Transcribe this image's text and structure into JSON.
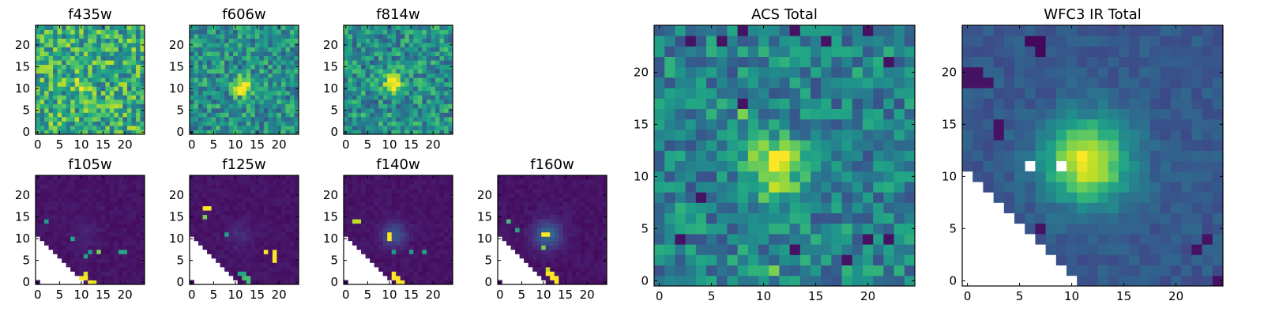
{
  "chart_data": [
    {
      "type": "heatmap",
      "title": "f435w",
      "kind": "opt_noise",
      "xticks": [
        "0",
        "5",
        "10",
        "15",
        "20"
      ],
      "yticks": [
        "0",
        "5",
        "10",
        "15",
        "20"
      ],
      "xlim": [
        0,
        25
      ],
      "ylim": [
        0,
        25
      ],
      "colormap": "viridis",
      "source": {
        "x": 10.5,
        "y": 10.5,
        "sigma": 1.2,
        "amp": 0.45
      }
    },
    {
      "type": "heatmap",
      "title": "f606w",
      "kind": "opt",
      "xticks": [
        "0",
        "5",
        "10",
        "15",
        "20"
      ],
      "yticks": [
        "0",
        "5",
        "10",
        "15",
        "20"
      ],
      "xlim": [
        0,
        25
      ],
      "ylim": [
        0,
        25
      ],
      "colormap": "viridis",
      "source": {
        "x": 11.5,
        "y": 10.5,
        "sigma": 1.4,
        "amp": 0.6
      }
    },
    {
      "type": "heatmap",
      "title": "f814w",
      "kind": "opt",
      "xticks": [
        "0",
        "5",
        "10",
        "15",
        "20"
      ],
      "yticks": [
        "0",
        "5",
        "10",
        "15",
        "20"
      ],
      "xlim": [
        0,
        25
      ],
      "ylim": [
        0,
        25
      ],
      "colormap": "viridis",
      "source": {
        "x": 11,
        "y": 11,
        "sigma": 1.4,
        "amp": 0.6
      }
    },
    {
      "type": "heatmap",
      "title": "f105w",
      "kind": "ir_band",
      "xticks": [
        "0",
        "5",
        "10",
        "15",
        "20"
      ],
      "yticks": [
        "0",
        "5",
        "10",
        "15",
        "20"
      ],
      "xlim": [
        0,
        25
      ],
      "ylim": [
        0,
        25
      ],
      "colormap": "viridis",
      "source": {
        "x": 11,
        "y": 11,
        "sigma": 2.0,
        "amp": 0.05
      },
      "hot_pixels": [
        [
          2,
          14,
          0.55
        ],
        [
          8,
          10,
          0.6
        ],
        [
          11,
          6,
          0.6
        ],
        [
          12,
          7,
          0.55
        ],
        [
          10,
          1,
          1.0
        ],
        [
          11,
          1,
          1.0
        ],
        [
          11,
          2,
          0.95
        ],
        [
          12,
          0,
          1.0
        ],
        [
          13,
          0,
          0.95
        ],
        [
          14,
          7,
          0.8
        ],
        [
          19,
          7,
          0.6
        ],
        [
          20,
          7,
          0.6
        ]
      ]
    },
    {
      "type": "heatmap",
      "title": "f125w",
      "kind": "ir_band",
      "xticks": [
        "0",
        "5",
        "10",
        "15",
        "20"
      ],
      "yticks": [
        "0",
        "5",
        "10",
        "15",
        "20"
      ],
      "xlim": [
        0,
        25
      ],
      "ylim": [
        0,
        25
      ],
      "colormap": "viridis",
      "source": {
        "x": 11,
        "y": 11,
        "sigma": 2.0,
        "amp": 0.08
      },
      "hot_pixels": [
        [
          3,
          17,
          1.0
        ],
        [
          4,
          17,
          1.0
        ],
        [
          3,
          15,
          0.8
        ],
        [
          8,
          11,
          0.55
        ],
        [
          11,
          2,
          0.6
        ],
        [
          12,
          2,
          0.6
        ],
        [
          12,
          1,
          0.7
        ],
        [
          13,
          1,
          0.7
        ],
        [
          13,
          0,
          0.7
        ],
        [
          17,
          7,
          1.0
        ],
        [
          19,
          7,
          1.0
        ],
        [
          19,
          6,
          1.0
        ],
        [
          19,
          5,
          1.0
        ]
      ]
    },
    {
      "type": "heatmap",
      "title": "f140w",
      "kind": "ir_band",
      "xticks": [
        "0",
        "5",
        "10",
        "15",
        "20"
      ],
      "yticks": [
        "0",
        "5",
        "10",
        "15",
        "20"
      ],
      "xlim": [
        0,
        25
      ],
      "ylim": [
        0,
        25
      ],
      "colormap": "viridis",
      "source": {
        "x": 11,
        "y": 11,
        "sigma": 2.0,
        "amp": 0.22
      },
      "hot_pixels": [
        [
          2,
          14,
          0.9
        ],
        [
          3,
          14,
          0.9
        ],
        [
          10,
          11,
          1.0
        ],
        [
          10,
          10,
          1.0
        ],
        [
          11,
          7,
          0.55
        ],
        [
          15,
          7,
          0.55
        ],
        [
          18,
          7,
          0.6
        ],
        [
          11,
          2,
          1.0
        ],
        [
          11,
          1,
          1.0
        ],
        [
          12,
          1,
          1.0
        ],
        [
          12,
          0,
          1.0
        ],
        [
          13,
          0,
          1.0
        ]
      ]
    },
    {
      "type": "heatmap",
      "title": "f160w",
      "kind": "ir_band",
      "xticks": [
        "0",
        "5",
        "10",
        "15",
        "20"
      ],
      "yticks": [
        "0",
        "5",
        "10",
        "15",
        "20"
      ],
      "xlim": [
        0,
        25
      ],
      "ylim": [
        0,
        25
      ],
      "colormap": "viridis",
      "source": {
        "x": 11,
        "y": 11,
        "sigma": 2.2,
        "amp": 0.3
      },
      "hot_pixels": [
        [
          2,
          14,
          0.7
        ],
        [
          4,
          12,
          0.6
        ],
        [
          10,
          11,
          1.0
        ],
        [
          11,
          11,
          1.0
        ],
        [
          10,
          8,
          0.8
        ],
        [
          11,
          3,
          0.9
        ],
        [
          11,
          2,
          1.0
        ],
        [
          12,
          2,
          1.0
        ],
        [
          12,
          1,
          1.0
        ],
        [
          13,
          1,
          1.0
        ],
        [
          13,
          0,
          1.0
        ]
      ]
    },
    {
      "type": "heatmap",
      "title": "ACS Total",
      "kind": "acs",
      "xticks": [
        "0",
        "5",
        "10",
        "15",
        "20"
      ],
      "yticks": [
        "0",
        "5",
        "10",
        "15",
        "20"
      ],
      "xlim": [
        0,
        25
      ],
      "ylim": [
        0,
        25
      ],
      "colormap": "viridis",
      "source": {
        "x": 11,
        "y": 11,
        "sigma": 1.8,
        "amp": 0.55
      },
      "hot_pixels": [
        [
          3,
          23,
          0.05
        ],
        [
          6,
          23,
          0.05
        ],
        [
          8,
          24,
          0.05
        ],
        [
          13,
          24,
          0.05
        ],
        [
          20,
          24,
          0.05
        ],
        [
          16,
          23,
          0.05
        ],
        [
          8,
          17,
          0.05
        ],
        [
          8,
          16,
          0.8
        ],
        [
          4,
          8,
          0.05
        ],
        [
          2,
          4,
          0.05
        ],
        [
          13,
          3,
          0.05
        ],
        [
          18,
          2,
          0.05
        ],
        [
          20,
          4,
          0.05
        ],
        [
          22,
          4,
          0.05
        ],
        [
          22,
          21,
          0.05
        ],
        [
          11,
          1,
          0.8
        ]
      ]
    },
    {
      "type": "heatmap",
      "title": "WFC3 IR Total",
      "kind": "ir_total",
      "xticks": [
        "0",
        "5",
        "10",
        "15",
        "20"
      ],
      "yticks": [
        "0",
        "5",
        "10",
        "15",
        "20"
      ],
      "xlim": [
        0,
        25
      ],
      "ylim": [
        0,
        25
      ],
      "colormap": "viridis",
      "source": {
        "x": 11.5,
        "y": 11.5,
        "sigma": 2.8,
        "amp": 0.7
      },
      "hot_pixels": [
        [
          6,
          23,
          0.02
        ],
        [
          7,
          23,
          0.02
        ],
        [
          7,
          22,
          0.02
        ],
        [
          0,
          20,
          0.05
        ],
        [
          1,
          20,
          0.05
        ],
        [
          0,
          19,
          0.05
        ],
        [
          1,
          19,
          0.05
        ],
        [
          2,
          19,
          0.05
        ],
        [
          3,
          15,
          0.05
        ],
        [
          3,
          14,
          0.05
        ],
        [
          6,
          11,
          null
        ],
        [
          9,
          11,
          null
        ],
        [
          7,
          5,
          0.05
        ],
        [
          23,
          4,
          0.05
        ],
        [
          22,
          3,
          0.05
        ],
        [
          24,
          0,
          0.05
        ]
      ]
    }
  ]
}
